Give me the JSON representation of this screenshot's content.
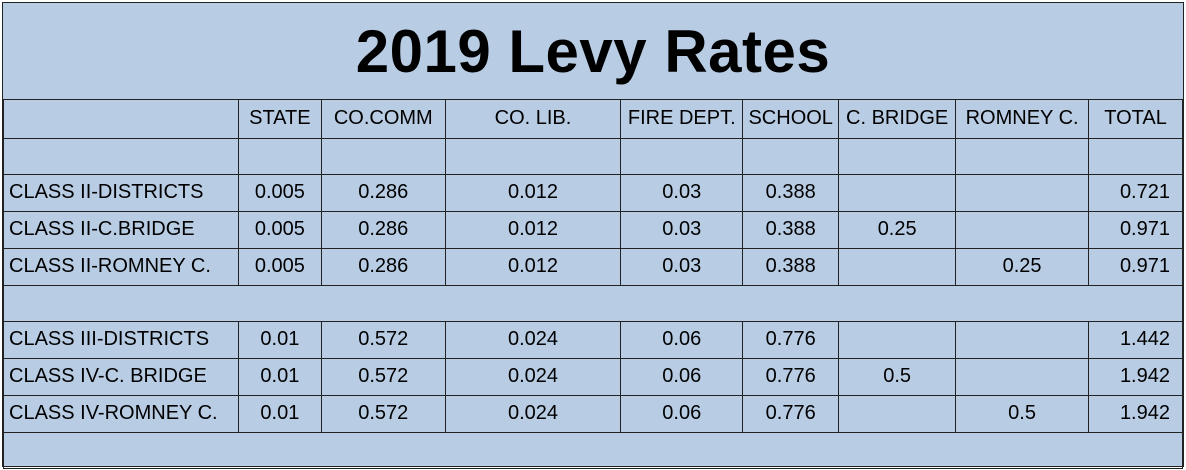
{
  "title": "2019 Levy Rates",
  "headers": [
    "",
    "STATE",
    "CO.COMM",
    "CO. LIB.",
    "FIRE DEPT.",
    "SCHOOL",
    "C. BRIDGE",
    "ROMNEY C.",
    "TOTAL"
  ],
  "group1": [
    {
      "name": "CLASS II-DISTRICTS",
      "state": "0.005",
      "cocomm": "0.286",
      "colib": "0.012",
      "fire": "0.03",
      "school": "0.388",
      "cbridge": "",
      "romney": "",
      "total": "0.721"
    },
    {
      "name": "CLASS II-C.BRIDGE",
      "state": "0.005",
      "cocomm": "0.286",
      "colib": "0.012",
      "fire": "0.03",
      "school": "0.388",
      "cbridge": "0.25",
      "romney": "",
      "total": "0.971"
    },
    {
      "name": "CLASS II-ROMNEY C.",
      "state": "0.005",
      "cocomm": "0.286",
      "colib": "0.012",
      "fire": "0.03",
      "school": "0.388",
      "cbridge": "",
      "romney": "0.25",
      "total": "0.971"
    }
  ],
  "group2": [
    {
      "name": "CLASS III-DISTRICTS",
      "state": "0.01",
      "cocomm": "0.572",
      "colib": "0.024",
      "fire": "0.06",
      "school": "0.776",
      "cbridge": "",
      "romney": "",
      "total": "1.442"
    },
    {
      "name": "CLASS IV-C. BRIDGE",
      "state": "0.01",
      "cocomm": "0.572",
      "colib": "0.024",
      "fire": "0.06",
      "school": "0.776",
      "cbridge": "0.5",
      "romney": "",
      "total": "1.942"
    },
    {
      "name": "CLASS IV-ROMNEY C.",
      "state": "0.01",
      "cocomm": "0.572",
      "colib": "0.024",
      "fire": "0.06",
      "school": "0.776",
      "cbridge": "",
      "romney": "0.5",
      "total": "1.942"
    }
  ]
}
